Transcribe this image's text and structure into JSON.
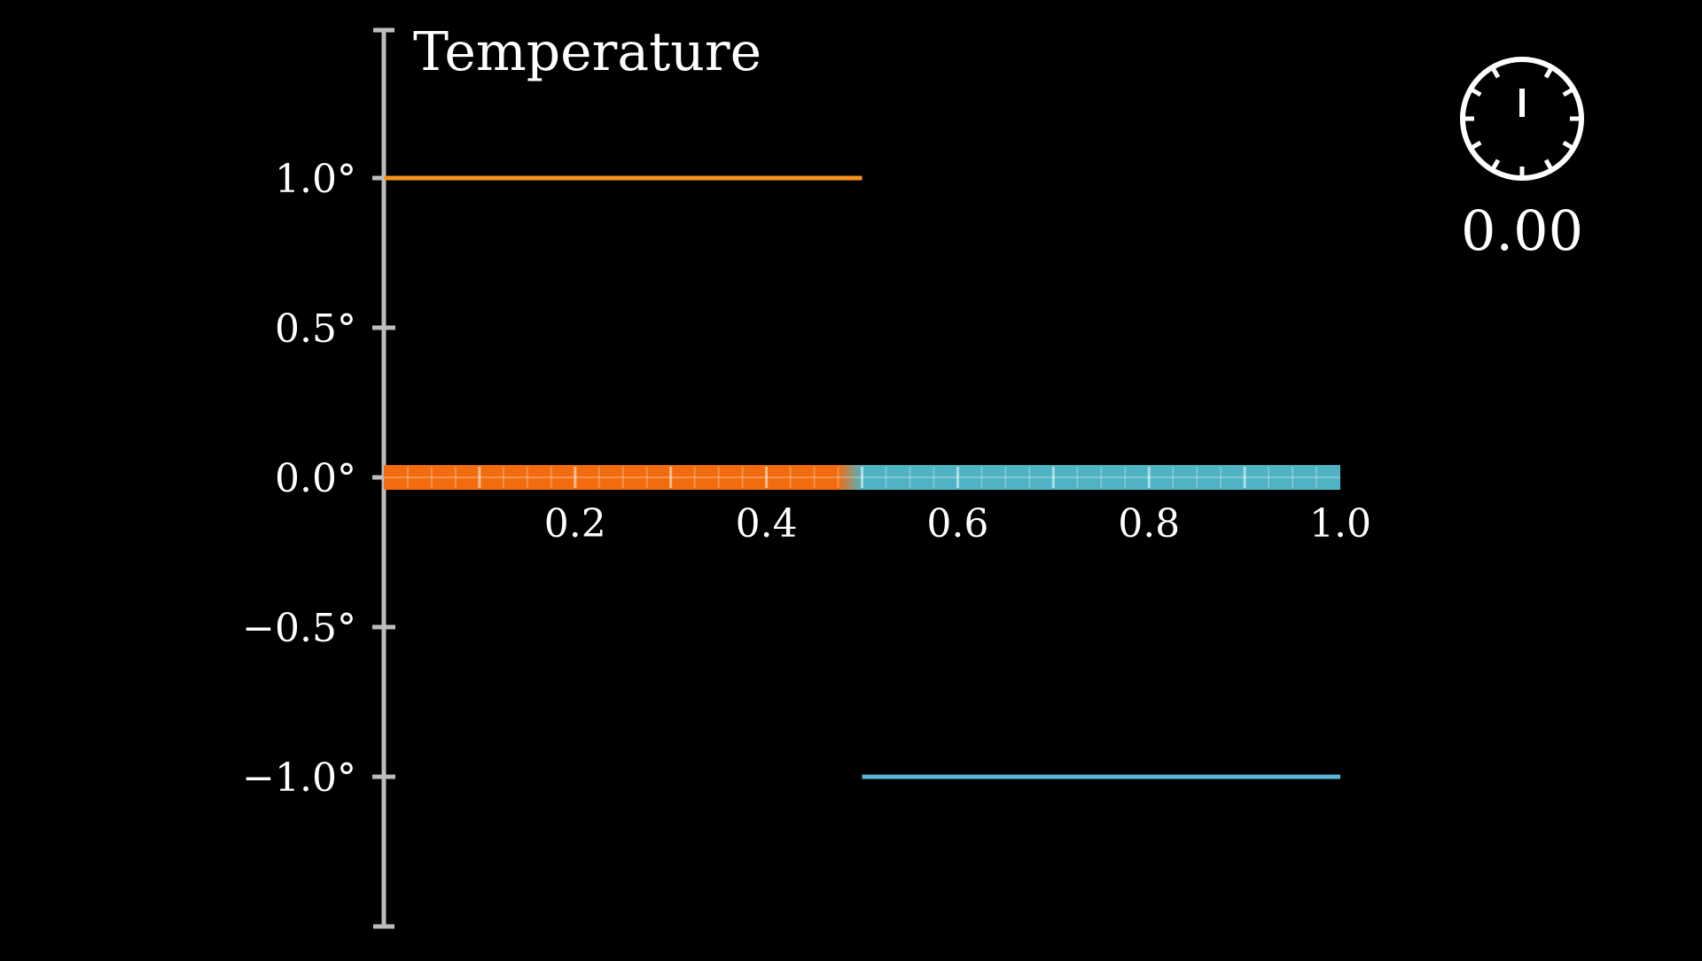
{
  "chart_data": {
    "type": "line",
    "title": "",
    "ylabel": "Temperature",
    "xlabel": "",
    "xlim": [
      0,
      1
    ],
    "ylim": [
      -1.5,
      1.5
    ],
    "x_ticks": [
      {
        "value": 0.2,
        "label": "0.2"
      },
      {
        "value": 0.4,
        "label": "0.4"
      },
      {
        "value": 0.6,
        "label": "0.6"
      },
      {
        "value": 0.8,
        "label": "0.8"
      },
      {
        "value": 1.0,
        "label": "1.0"
      }
    ],
    "y_ticks": [
      {
        "value": 1.0,
        "label": "1.0°"
      },
      {
        "value": 0.5,
        "label": "0.5°"
      },
      {
        "value": 0.0,
        "label": "0.0°"
      },
      {
        "value": -0.5,
        "label": "−0.5°"
      },
      {
        "value": -1.0,
        "label": "−1.0°"
      }
    ],
    "series": [
      {
        "x": [
          0.0,
          0.5
        ],
        "y": [
          1.0,
          1.0
        ],
        "color": "#f7941d"
      },
      {
        "x": [
          0.5,
          1.0
        ],
        "y": [
          -1.0,
          -1.0
        ],
        "color": "#5bb8d9"
      }
    ],
    "rod": {
      "hot_color": "#f26c0f",
      "cold_color": "#4fb3c4",
      "split_x": 0.5,
      "divisions": 40,
      "major_every": 4
    },
    "grid": false,
    "legend": "none"
  },
  "timer": {
    "value": "0.00",
    "icon": "stopwatch-icon"
  }
}
